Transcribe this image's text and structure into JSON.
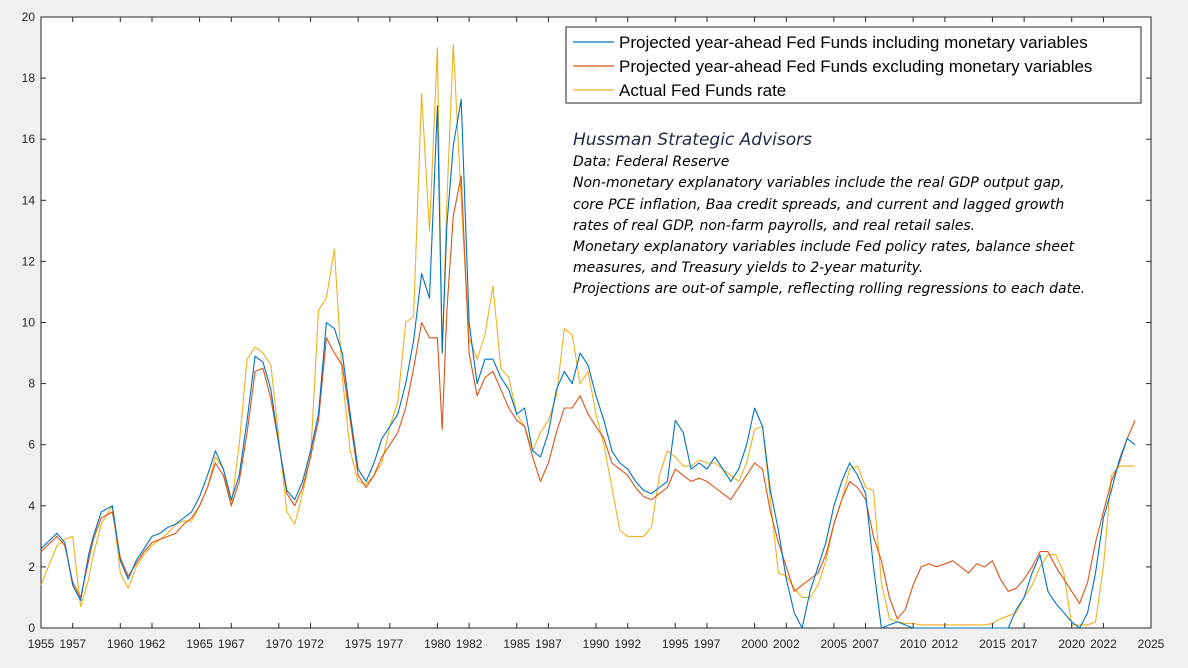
{
  "chart_data": {
    "type": "line",
    "title": "",
    "xlabel": "",
    "ylabel": "",
    "xlim": [
      1955,
      2025
    ],
    "ylim": [
      0,
      20
    ],
    "x_ticks": [
      "1955",
      "1957",
      "1960",
      "1962",
      "1965",
      "1967",
      "1970",
      "1972",
      "1975",
      "1977",
      "1980",
      "1982",
      "1985",
      "1987",
      "1990",
      "1992",
      "1995",
      "1997",
      "2000",
      "2002",
      "2005",
      "2007",
      "2010",
      "2012",
      "2015",
      "2017",
      "2020",
      "2022",
      "2025"
    ],
    "y_ticks": [
      "0",
      "2",
      "4",
      "6",
      "8",
      "10",
      "12",
      "14",
      "16",
      "18",
      "20"
    ],
    "grid": false,
    "legend_position": "top-right",
    "legend": [
      "Projected year-ahead Fed Funds including monetary variables",
      "Projected year-ahead Fed Funds excluding monetary variables",
      "Actual Fed Funds rate"
    ],
    "annotation": {
      "title": "Hussman Strategic Advisors",
      "lines": [
        "Data: Federal Reserve",
        "Non-monetary explanatory variables include the real GDP output gap,",
        "core PCE inflation, Baa credit spreads, and current and lagged growth",
        "rates of real GDP, non-farm payrolls, and real retail sales.",
        "Monetary explanatory variables include Fed policy rates, balance sheet",
        "measures, and Treasury yields to 2-year maturity.",
        "Projections are out-of sample, reflecting rolling regressions to each date."
      ]
    },
    "x": [
      1955.0,
      1956.0,
      1956.5,
      1957.0,
      1957.5,
      1958.0,
      1958.3,
      1958.8,
      1959.5,
      1960.0,
      1960.5,
      1961.0,
      1961.5,
      1962.0,
      1962.5,
      1963.0,
      1963.5,
      1964.0,
      1964.5,
      1965.0,
      1965.5,
      1966.0,
      1966.5,
      1967.0,
      1967.5,
      1968.0,
      1968.5,
      1969.0,
      1969.5,
      1970.0,
      1970.5,
      1971.0,
      1971.5,
      1972.0,
      1972.5,
      1973.0,
      1973.5,
      1974.0,
      1974.5,
      1975.0,
      1975.5,
      1976.0,
      1976.5,
      1977.0,
      1977.5,
      1978.0,
      1978.5,
      1979.0,
      1979.5,
      1980.0,
      1980.3,
      1980.6,
      1981.0,
      1981.5,
      1982.0,
      1982.5,
      1983.0,
      1983.5,
      1984.0,
      1984.5,
      1985.0,
      1985.5,
      1986.0,
      1986.5,
      1987.0,
      1987.5,
      1988.0,
      1988.5,
      1989.0,
      1989.5,
      1990.0,
      1990.5,
      1991.0,
      1991.5,
      1992.0,
      1992.5,
      1993.0,
      1993.5,
      1994.0,
      1994.5,
      1995.0,
      1995.5,
      1996.0,
      1996.5,
      1997.0,
      1997.5,
      1998.0,
      1998.5,
      1999.0,
      1999.5,
      2000.0,
      2000.5,
      2001.0,
      2001.5,
      2002.0,
      2002.5,
      2003.0,
      2003.5,
      2004.0,
      2004.5,
      2005.0,
      2005.5,
      2006.0,
      2006.5,
      2007.0,
      2007.5,
      2008.0,
      2008.5,
      2009.0,
      2009.5,
      2010.0,
      2010.5,
      2011.0,
      2011.5,
      2012.0,
      2012.5,
      2013.0,
      2013.5,
      2014.0,
      2014.5,
      2015.0,
      2015.5,
      2016.0,
      2016.5,
      2017.0,
      2017.5,
      2018.0,
      2018.5,
      2019.0,
      2019.5,
      2020.0,
      2020.5,
      2021.0,
      2021.5,
      2022.0,
      2022.5,
      2023.0,
      2023.5,
      2024.0
    ],
    "series": [
      {
        "name": "Projected year-ahead Fed Funds including monetary variables",
        "color": "#0072BD",
        "values": [
          2.6,
          3.1,
          2.8,
          1.4,
          0.9,
          2.4,
          3.0,
          3.8,
          4.0,
          2.2,
          1.6,
          2.2,
          2.6,
          3.0,
          3.1,
          3.3,
          3.4,
          3.6,
          3.8,
          4.3,
          5.0,
          5.8,
          5.2,
          4.2,
          5.0,
          6.8,
          8.9,
          8.7,
          7.8,
          6.0,
          4.5,
          4.2,
          4.8,
          5.8,
          7.0,
          10.0,
          9.8,
          9.0,
          7.0,
          5.2,
          4.8,
          5.4,
          6.2,
          6.6,
          7.0,
          8.0,
          9.4,
          11.6,
          10.8,
          17.1,
          9.0,
          13.2,
          15.8,
          17.3,
          10.0,
          8.0,
          8.8,
          8.8,
          8.2,
          7.8,
          7.0,
          7.2,
          5.8,
          5.6,
          6.4,
          7.8,
          8.4,
          8.0,
          9.0,
          8.6,
          7.6,
          6.8,
          5.8,
          5.4,
          5.2,
          4.8,
          4.5,
          4.4,
          4.6,
          4.8,
          6.8,
          6.4,
          5.2,
          5.4,
          5.2,
          5.6,
          5.2,
          4.8,
          5.2,
          6.0,
          7.2,
          6.6,
          4.5,
          3.2,
          1.6,
          0.5,
          0.0,
          1.2,
          2.0,
          2.8,
          4.0,
          4.8,
          5.4,
          5.0,
          4.4,
          2.0,
          0.0,
          0.1,
          0.2,
          0.1,
          0.0,
          0.0,
          0.0,
          0.0,
          0.0,
          0.0,
          0.0,
          0.0,
          0.0,
          0.0,
          0.0,
          0.0,
          0.0,
          0.6,
          1.0,
          1.8,
          2.4,
          1.2,
          0.8,
          0.5,
          0.2,
          0.0,
          0.5,
          1.8,
          3.6,
          4.5,
          5.5,
          6.2,
          6.0
        ]
      },
      {
        "name": "Projected year-ahead Fed Funds excluding monetary variables",
        "color": "#D95319",
        "values": [
          2.5,
          3.0,
          2.7,
          1.5,
          1.0,
          2.2,
          2.9,
          3.6,
          3.8,
          2.3,
          1.7,
          2.1,
          2.5,
          2.8,
          2.9,
          3.0,
          3.1,
          3.4,
          3.6,
          4.0,
          4.6,
          5.4,
          5.0,
          4.0,
          4.8,
          6.4,
          8.4,
          8.5,
          7.5,
          6.0,
          4.4,
          4.0,
          4.6,
          5.6,
          6.8,
          9.5,
          9.0,
          8.6,
          6.8,
          5.0,
          4.6,
          5.0,
          5.6,
          6.0,
          6.4,
          7.2,
          8.5,
          10.0,
          9.5,
          9.5,
          6.5,
          10.4,
          13.5,
          14.8,
          9.0,
          7.6,
          8.2,
          8.4,
          7.8,
          7.2,
          6.8,
          6.6,
          5.6,
          4.8,
          5.4,
          6.4,
          7.2,
          7.2,
          7.6,
          7.0,
          6.6,
          6.2,
          5.4,
          5.2,
          5.0,
          4.6,
          4.3,
          4.2,
          4.4,
          4.6,
          5.2,
          5.0,
          4.8,
          4.9,
          4.8,
          4.6,
          4.4,
          4.2,
          4.6,
          5.0,
          5.4,
          5.2,
          3.8,
          2.8,
          2.0,
          1.2,
          1.4,
          1.6,
          1.8,
          2.4,
          3.4,
          4.2,
          4.8,
          4.6,
          4.2,
          3.0,
          2.2,
          1.0,
          0.3,
          0.6,
          1.4,
          2.0,
          2.1,
          2.0,
          2.1,
          2.2,
          2.0,
          1.8,
          2.1,
          2.0,
          2.2,
          1.6,
          1.2,
          1.3,
          1.6,
          2.0,
          2.5,
          2.5,
          2.0,
          1.6,
          1.2,
          0.8,
          1.5,
          2.8,
          3.8,
          4.8,
          5.4,
          6.2,
          6.8
        ]
      },
      {
        "name": "Actual Fed Funds rate",
        "color": "#EDB120",
        "values": [
          1.4,
          2.7,
          2.9,
          3.0,
          0.7,
          1.6,
          2.4,
          3.4,
          4.0,
          1.8,
          1.3,
          2.0,
          2.4,
          2.7,
          2.9,
          3.1,
          3.4,
          3.5,
          3.5,
          4.0,
          4.6,
          5.6,
          5.2,
          4.0,
          6.0,
          8.8,
          9.2,
          9.0,
          8.6,
          6.2,
          3.8,
          3.4,
          4.4,
          5.6,
          10.4,
          10.8,
          12.4,
          8.2,
          5.8,
          4.8,
          4.7,
          5.0,
          5.4,
          6.6,
          7.4,
          10.0,
          10.2,
          17.5,
          13.0,
          19.0,
          9.0,
          14.0,
          19.1,
          14.0,
          9.5,
          8.8,
          9.6,
          11.2,
          8.5,
          8.2,
          7.0,
          6.6,
          5.8,
          6.4,
          6.8,
          7.6,
          9.8,
          9.6,
          8.0,
          8.4,
          7.0,
          6.0,
          4.6,
          3.2,
          3.0,
          3.0,
          3.0,
          3.3,
          5.0,
          5.8,
          5.6,
          5.3,
          5.3,
          5.5,
          5.4,
          5.4,
          5.2,
          5.0,
          4.8,
          5.4,
          6.5,
          6.6,
          4.2,
          1.8,
          1.7,
          1.3,
          1.0,
          1.0,
          1.4,
          2.2,
          3.4,
          4.2,
          5.2,
          5.3,
          4.6,
          4.5,
          1.5,
          0.3,
          0.2,
          0.15,
          0.15,
          0.1,
          0.1,
          0.1,
          0.1,
          0.1,
          0.1,
          0.1,
          0.1,
          0.1,
          0.15,
          0.3,
          0.4,
          0.5,
          1.0,
          1.4,
          2.0,
          2.4,
          2.4,
          1.8,
          0.1,
          0.1,
          0.1,
          0.2,
          2.0,
          5.0,
          5.3,
          5.3,
          5.3
        ]
      }
    ]
  }
}
